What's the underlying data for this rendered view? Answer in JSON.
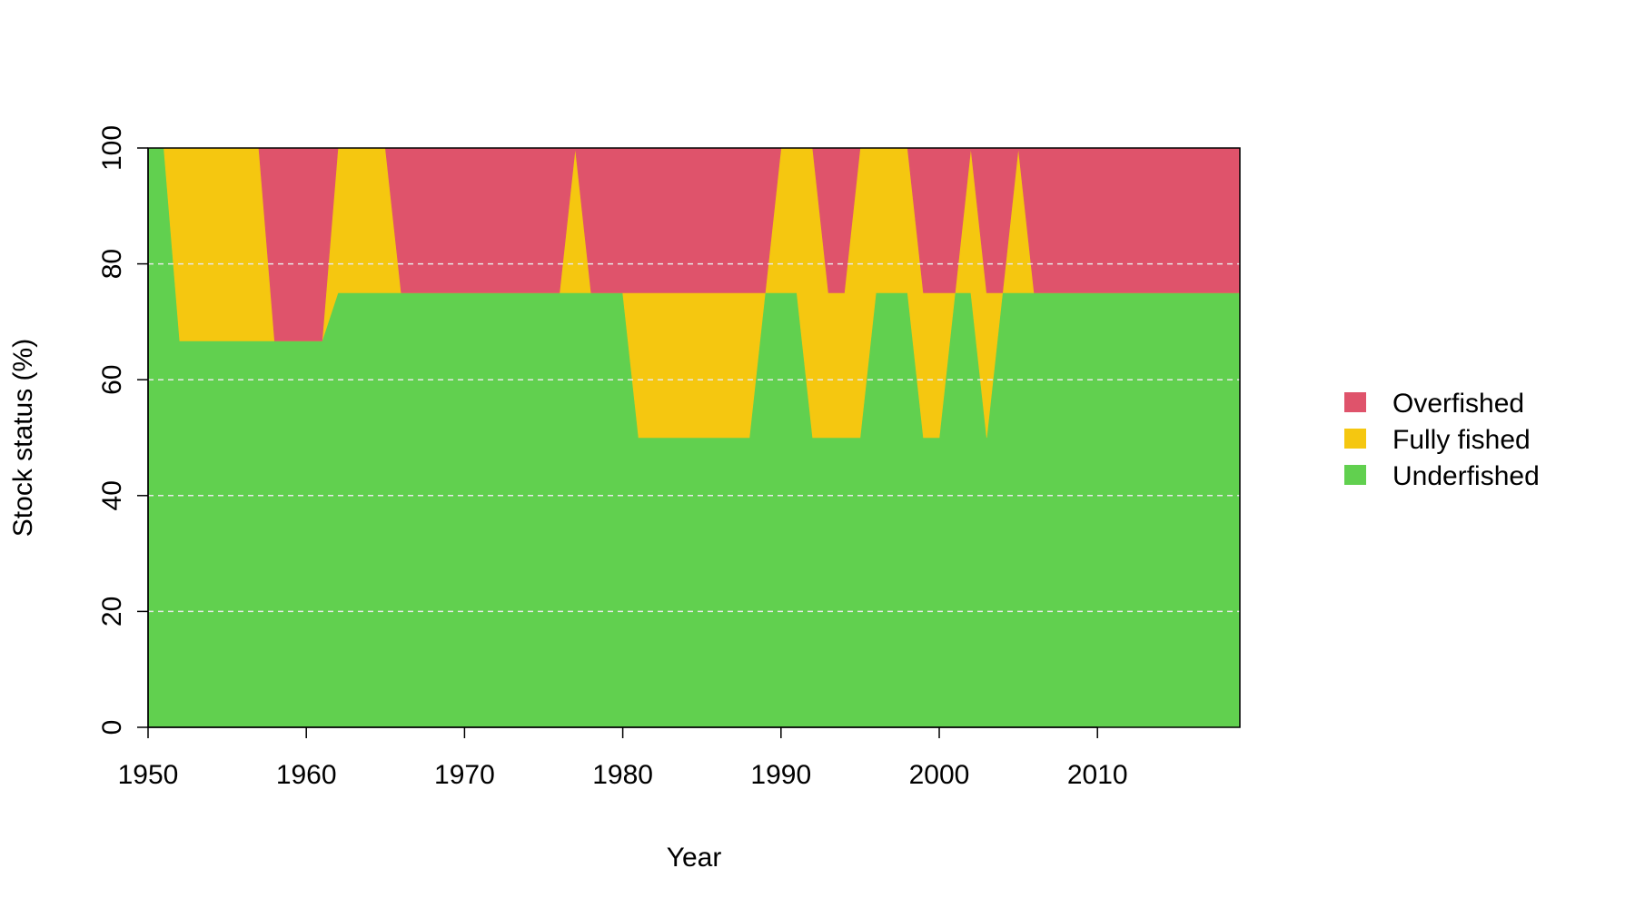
{
  "chart_data": {
    "type": "area",
    "stacked": true,
    "xlabel": "Year",
    "ylabel": "Stock status (%)",
    "xlim": [
      1950,
      2019
    ],
    "ylim": [
      0,
      100
    ],
    "x_ticks": [
      1950,
      1960,
      1970,
      1980,
      1990,
      2000,
      2010
    ],
    "y_ticks": [
      0,
      20,
      40,
      60,
      80,
      100
    ],
    "grid": "horizontal dashed",
    "legend_position": "right",
    "legend": [
      {
        "label": "Overfished",
        "color": "#DF536B"
      },
      {
        "label": "Fully fished",
        "color": "#F5C710"
      },
      {
        "label": "Underfished",
        "color": "#61D04F"
      }
    ],
    "x": [
      1950,
      1951,
      1952,
      1953,
      1954,
      1955,
      1956,
      1957,
      1958,
      1959,
      1960,
      1961,
      1962,
      1963,
      1964,
      1965,
      1966,
      1967,
      1968,
      1969,
      1970,
      1971,
      1972,
      1973,
      1974,
      1975,
      1976,
      1977,
      1978,
      1979,
      1980,
      1981,
      1982,
      1983,
      1984,
      1985,
      1986,
      1987,
      1988,
      1989,
      1990,
      1991,
      1992,
      1993,
      1994,
      1995,
      1996,
      1997,
      1998,
      1999,
      2000,
      2001,
      2002,
      2003,
      2004,
      2005,
      2006,
      2007,
      2008,
      2009,
      2010,
      2011,
      2012,
      2013,
      2014,
      2015,
      2016,
      2017,
      2018,
      2019
    ],
    "series": [
      {
        "name": "Underfished",
        "color": "#61D04F",
        "values": [
          100,
          100,
          66.7,
          66.7,
          66.7,
          66.7,
          66.7,
          66.7,
          66.7,
          66.7,
          66.7,
          66.7,
          75,
          75,
          75,
          75,
          75,
          75,
          75,
          75,
          75,
          75,
          75,
          75,
          75,
          75,
          75,
          75,
          75,
          75,
          75,
          50,
          50,
          50,
          50,
          50,
          50,
          50,
          50,
          75,
          75,
          75,
          50,
          50,
          50,
          50,
          75,
          75,
          75,
          50,
          50,
          75,
          75,
          50,
          75,
          75,
          75,
          75,
          75,
          75,
          75,
          75,
          75,
          75,
          75,
          75,
          75,
          75,
          75,
          75
        ]
      },
      {
        "name": "Fully fished",
        "color": "#F5C710",
        "values": [
          0,
          0,
          33.3,
          33.3,
          33.3,
          33.3,
          33.3,
          33.3,
          0,
          0,
          0,
          0,
          25,
          25,
          25,
          25,
          0,
          0,
          0,
          0,
          0,
          0,
          0,
          0,
          0,
          0,
          0,
          25,
          0,
          0,
          0,
          25,
          25,
          25,
          25,
          25,
          25,
          25,
          25,
          0,
          25,
          25,
          50,
          25,
          25,
          50,
          25,
          25,
          25,
          25,
          25,
          0,
          25,
          25,
          0,
          25,
          0,
          0,
          0,
          0,
          0,
          0,
          0,
          0,
          0,
          0,
          0,
          0,
          0,
          0
        ]
      },
      {
        "name": "Overfished",
        "color": "#DF536B",
        "values": [
          0,
          0,
          0,
          0,
          0,
          0,
          0,
          0,
          33.3,
          33.3,
          33.3,
          33.3,
          0,
          0,
          0,
          0,
          25,
          25,
          25,
          25,
          25,
          25,
          25,
          25,
          25,
          25,
          25,
          0,
          25,
          25,
          25,
          25,
          25,
          25,
          25,
          25,
          25,
          25,
          25,
          25,
          0,
          0,
          0,
          25,
          25,
          0,
          0,
          0,
          0,
          25,
          25,
          25,
          0,
          25,
          25,
          0,
          25,
          25,
          25,
          25,
          25,
          25,
          25,
          25,
          25,
          25,
          25,
          25,
          25,
          25
        ]
      }
    ]
  }
}
